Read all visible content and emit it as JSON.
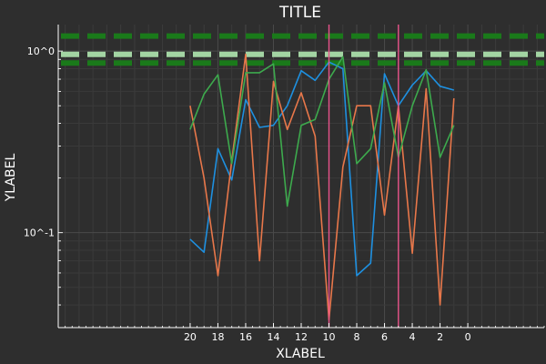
{
  "chart_data": {
    "type": "line",
    "title": "TITLE",
    "xlabel": "XLABEL",
    "ylabel": "YLABEL",
    "x_reversed": true,
    "xlim": [
      -5.5,
      29.5
    ],
    "x_ticks": [
      20,
      18,
      16,
      14,
      12,
      10,
      8,
      6,
      4,
      2,
      0
    ],
    "y_scale": "log10",
    "ylim": [
      0.03,
      1.4
    ],
    "y_ticks": [
      {
        "value": 0.1,
        "label": "10^-1"
      },
      {
        "value": 1,
        "label": "10^0"
      }
    ],
    "grid": true,
    "vlines": [
      {
        "x": 10,
        "color": "#e8538a"
      },
      {
        "x": 5,
        "color": "#e8538a"
      }
    ],
    "hlines": [
      {
        "y": 1.21,
        "color": "#1a7a1a",
        "style": "dashed"
      },
      {
        "y": 0.96,
        "color": "#a3d4a3",
        "style": "dashed"
      },
      {
        "y": 0.86,
        "color": "#1a7a1a",
        "style": "dashed"
      }
    ],
    "x": [
      20,
      19,
      18,
      17,
      16,
      15,
      14,
      13,
      12,
      11,
      10,
      9,
      8,
      7,
      6,
      5,
      4,
      3,
      2,
      1
    ],
    "series": [
      {
        "color": "#1e90e0",
        "values": [
          0.092,
          0.078,
          0.29,
          0.195,
          0.54,
          0.38,
          0.39,
          0.5,
          0.78,
          0.69,
          0.87,
          0.8,
          0.058,
          0.068,
          0.75,
          0.5,
          0.65,
          0.78,
          0.64,
          0.61
        ]
      },
      {
        "color": "#e8774a",
        "values": [
          0.5,
          0.2,
          0.058,
          0.25,
          0.96,
          0.07,
          0.68,
          0.37,
          0.59,
          0.34,
          0.033,
          0.23,
          0.5,
          0.5,
          0.125,
          0.5,
          0.077,
          0.62,
          0.04,
          0.55
        ]
      },
      {
        "color": "#3daa4d",
        "values": [
          0.37,
          0.58,
          0.74,
          0.24,
          0.76,
          0.76,
          0.85,
          0.14,
          0.39,
          0.42,
          0.7,
          0.93,
          0.24,
          0.29,
          0.67,
          0.26,
          0.5,
          0.79,
          0.26,
          0.39
        ]
      }
    ]
  }
}
